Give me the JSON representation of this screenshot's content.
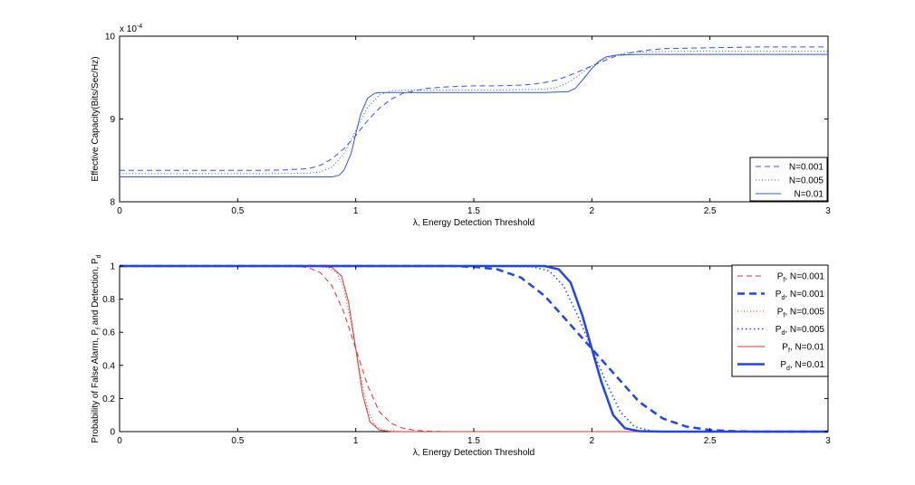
{
  "chart_data": [
    {
      "type": "line",
      "xlabel": "λ, Energy Detection Threshold",
      "ylabel": "Effective Capacity(Bits/Sec/Hz)",
      "exponent_label": "x 10",
      "exponent_power": "-4",
      "xlim": [
        0,
        3
      ],
      "ylim": [
        8,
        10
      ],
      "x_ticks": [
        0,
        0.5,
        1,
        1.5,
        2,
        2.5,
        3
      ],
      "x_tick_labels": [
        "0",
        "0.5",
        "1",
        "1.5",
        "2",
        "2.5",
        "3"
      ],
      "y_ticks": [
        8,
        9,
        10
      ],
      "y_tick_labels": [
        "8",
        "9",
        "10"
      ],
      "legend_position": "bottom-right",
      "series": [
        {
          "name": "N=0.001",
          "color": "#3355dd",
          "style": "dashed",
          "x": [
            0,
            0.2,
            0.4,
            0.6,
            0.7,
            0.8,
            0.85,
            0.9,
            0.95,
            1.0,
            1.05,
            1.1,
            1.15,
            1.2,
            1.3,
            1.4,
            1.5,
            1.6,
            1.7,
            1.75,
            1.8,
            1.85,
            1.9,
            1.95,
            2.0,
            2.05,
            2.1,
            2.2,
            2.3,
            2.5,
            2.7,
            3.0
          ],
          "y": [
            8.38,
            8.38,
            8.38,
            8.38,
            8.385,
            8.4,
            8.44,
            8.52,
            8.64,
            8.8,
            8.98,
            9.13,
            9.24,
            9.31,
            9.37,
            9.39,
            9.4,
            9.4,
            9.41,
            9.42,
            9.44,
            9.47,
            9.52,
            9.58,
            9.64,
            9.7,
            9.76,
            9.82,
            9.85,
            9.86,
            9.87,
            9.87
          ]
        },
        {
          "name": "N=0.005",
          "color": "#3355dd",
          "style": "dotted",
          "x": [
            0,
            0.2,
            0.4,
            0.6,
            0.8,
            0.85,
            0.9,
            0.95,
            1.0,
            1.05,
            1.1,
            1.15,
            1.2,
            1.4,
            1.6,
            1.8,
            1.85,
            1.9,
            1.95,
            2.0,
            2.05,
            2.1,
            2.15,
            2.2,
            2.4,
            2.6,
            3.0
          ],
          "y": [
            8.34,
            8.34,
            8.34,
            8.34,
            8.345,
            8.36,
            8.42,
            8.58,
            8.86,
            9.14,
            9.29,
            9.34,
            9.35,
            9.35,
            9.35,
            9.36,
            9.38,
            9.44,
            9.54,
            9.64,
            9.72,
            9.77,
            9.8,
            9.81,
            9.82,
            9.82,
            9.82
          ]
        },
        {
          "name": "N=0.01",
          "color": "#3355dd",
          "style": "solid",
          "x": [
            0,
            0.2,
            0.4,
            0.6,
            0.8,
            0.9,
            0.93,
            0.95,
            0.98,
            1.0,
            1.02,
            1.05,
            1.08,
            1.1,
            1.2,
            1.4,
            1.6,
            1.8,
            1.9,
            1.93,
            1.96,
            2.0,
            2.03,
            2.06,
            2.1,
            2.2,
            2.3,
            2.5,
            3.0
          ],
          "y": [
            8.3,
            8.3,
            8.3,
            8.3,
            8.3,
            8.3,
            8.32,
            8.38,
            8.58,
            8.82,
            9.05,
            9.25,
            9.31,
            9.32,
            9.32,
            9.32,
            9.32,
            9.32,
            9.33,
            9.37,
            9.47,
            9.61,
            9.7,
            9.75,
            9.77,
            9.78,
            9.78,
            9.78,
            9.78
          ]
        }
      ]
    },
    {
      "type": "line",
      "xlabel": "λ, Energy Detection Threshold",
      "ylabel_main": "Probability of False Alarm, P",
      "ylabel_sub1": "f",
      "ylabel_mid": " and Detection, P",
      "ylabel_sub2": "d",
      "xlim": [
        0,
        3
      ],
      "ylim": [
        0,
        1
      ],
      "x_ticks": [
        0,
        0.5,
        1,
        1.5,
        2,
        2.5,
        3
      ],
      "x_tick_labels": [
        "0",
        "0.5",
        "1",
        "1.5",
        "2",
        "2.5",
        "3"
      ],
      "y_ticks": [
        0,
        0.2,
        0.4,
        0.6,
        0.8,
        1
      ],
      "y_tick_labels": [
        "0",
        "0.2",
        "0.4",
        "0.6",
        "0.8",
        "1"
      ],
      "legend_position": "top-right",
      "series": [
        {
          "legend_main": "P",
          "legend_sub": "f",
          "legend_tail": ", N=0.001",
          "color": "#e03030",
          "style": "dashed",
          "width": 1,
          "x": [
            0,
            0.5,
            0.7,
            0.75,
            0.8,
            0.85,
            0.9,
            0.95,
            1.0,
            1.05,
            1.1,
            1.15,
            1.2,
            1.25,
            1.3,
            1.4,
            1.6,
            2.0,
            3.0
          ],
          "y": [
            1,
            1,
            1,
            0.998,
            0.99,
            0.96,
            0.88,
            0.72,
            0.5,
            0.28,
            0.12,
            0.05,
            0.02,
            0.008,
            0.003,
            0,
            0,
            0,
            0
          ]
        },
        {
          "legend_main": "P",
          "legend_sub": "d",
          "legend_tail": ", N=0.001",
          "color": "#2244ee",
          "style": "dashed",
          "width": 2.5,
          "x": [
            0,
            1.0,
            1.4,
            1.5,
            1.6,
            1.7,
            1.8,
            1.9,
            2.0,
            2.1,
            2.2,
            2.3,
            2.4,
            2.5,
            2.6,
            2.7,
            3.0
          ],
          "y": [
            1,
            1,
            1,
            0.995,
            0.98,
            0.93,
            0.82,
            0.66,
            0.5,
            0.34,
            0.18,
            0.08,
            0.03,
            0.01,
            0.003,
            0,
            0
          ]
        },
        {
          "legend_main": "P",
          "legend_sub": "f",
          "legend_tail": ", N=0.005",
          "color": "#e03030",
          "style": "dotted",
          "width": 1,
          "x": [
            0,
            0.8,
            0.88,
            0.92,
            0.95,
            0.98,
            1.0,
            1.02,
            1.05,
            1.08,
            1.12,
            1.2,
            2.0,
            3.0
          ],
          "y": [
            1,
            1,
            0.99,
            0.96,
            0.86,
            0.66,
            0.5,
            0.34,
            0.14,
            0.04,
            0.008,
            0,
            0,
            0
          ],
          "print_name": "P_f, N=0.005"
        },
        {
          "legend_main": "P",
          "legend_sub": "d",
          "legend_tail": ", N=0.005",
          "color": "#2244ee",
          "style": "dotted",
          "width": 1.5,
          "x": [
            0,
            1.5,
            1.75,
            1.82,
            1.88,
            1.94,
            2.0,
            2.06,
            2.12,
            2.18,
            2.25,
            2.35,
            3.0
          ],
          "y": [
            1,
            1,
            0.995,
            0.97,
            0.88,
            0.7,
            0.5,
            0.3,
            0.12,
            0.03,
            0.005,
            0,
            0
          ],
          "print_name": "P_d, N=0.005"
        },
        {
          "legend_main": "P",
          "legend_sub": "f",
          "legend_tail": ", N=0.01",
          "color": "#e03030",
          "style": "solid",
          "width": 1,
          "x": [
            0,
            0.85,
            0.9,
            0.94,
            0.97,
            1.0,
            1.03,
            1.06,
            1.1,
            1.15,
            2.0,
            3.0
          ],
          "y": [
            1,
            1,
            0.99,
            0.94,
            0.78,
            0.5,
            0.22,
            0.06,
            0.01,
            0,
            0,
            0
          ],
          "print_name": "P_f, N=0.01"
        },
        {
          "legend_main": "P",
          "legend_sub": "d",
          "legend_tail": ", N=0.01",
          "color": "#2244ee",
          "style": "solid",
          "width": 2.5,
          "x": [
            0,
            1.5,
            1.8,
            1.86,
            1.91,
            1.96,
            2.0,
            2.04,
            2.09,
            2.14,
            2.2,
            2.3,
            3.0
          ],
          "y": [
            1,
            1,
            1,
            0.98,
            0.9,
            0.7,
            0.5,
            0.3,
            0.1,
            0.02,
            0.003,
            0,
            0
          ],
          "print_name": "P_d, N=0.01"
        }
      ]
    }
  ]
}
